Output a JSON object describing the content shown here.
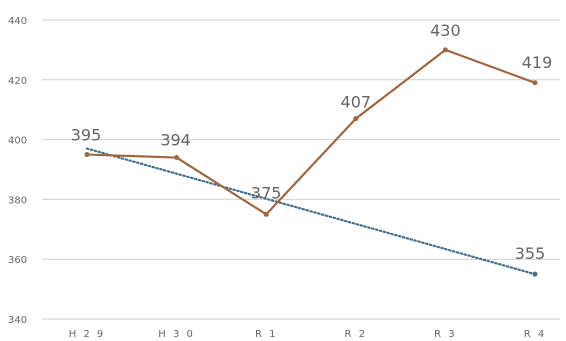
{
  "chart_data": {
    "type": "line",
    "title": "",
    "xlabel": "",
    "ylabel": "",
    "categories": [
      "H29",
      "H30",
      "R1",
      "R2",
      "R3",
      "R4"
    ],
    "x_tick_labels": [
      "H 2 9",
      "H 3 0",
      "R 1",
      "R 2",
      "R 3",
      "R 4"
    ],
    "y_ticks": [
      340,
      360,
      380,
      400,
      420,
      440
    ],
    "ylim": [
      340,
      440
    ],
    "grid": true,
    "legend": "none",
    "series": [
      {
        "values": [
          395,
          394,
          375,
          407,
          430,
          419
        ],
        "color": "#a0663e",
        "style": "solid",
        "markers": true
      }
    ],
    "trendline": {
      "color": "#44708e",
      "style": "dotted",
      "start_value": 397,
      "end_value": 355,
      "end_marker": true
    },
    "data_labels": [
      "395",
      "394",
      "375",
      "407",
      "430",
      "419",
      "355"
    ],
    "colors": {
      "grid": "#d0d0d0",
      "tick_text": "#666666",
      "label_text": "#666666"
    }
  }
}
